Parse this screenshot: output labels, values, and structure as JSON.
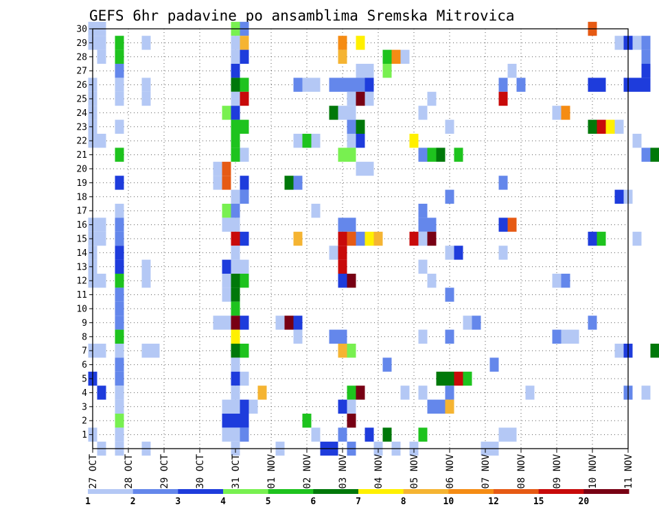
{
  "chart_data": {
    "type": "heatmap",
    "title": "GEFS 6hr padavine po ansamblima Sremska Mitrovica",
    "x_tick_labels": [
      "27 OCT",
      "28 OCT",
      "29 OCT",
      "30 OCT",
      "31 OCT",
      "01 NOV",
      "02 NOV",
      "03 NOV",
      "04 NOV",
      "05 NOV",
      "06 NOV",
      "07 NOV",
      "08 NOV",
      "09 NOV",
      "10 NOV",
      "11 NOV"
    ],
    "y_tick_labels": [
      "1",
      "2",
      "3",
      "4",
      "5",
      "6",
      "7",
      "8",
      "9",
      "10",
      "11",
      "12",
      "13",
      "14",
      "15",
      "16",
      "17",
      "18",
      "19",
      "20",
      "21",
      "22",
      "23",
      "24",
      "25",
      "26",
      "27",
      "28",
      "29",
      "30"
    ],
    "x_range": [
      0,
      60
    ],
    "y_range": [
      0,
      30
    ],
    "step_hours": 6,
    "grid": true,
    "colorbar": {
      "labels": [
        "1",
        "2",
        "3",
        "4",
        "5",
        "6",
        "7",
        "8",
        "10",
        "12",
        "15",
        "20"
      ],
      "colors": [
        "#b4c8f5",
        "#6487eb",
        "#1e3cdc",
        "#78f050",
        "#1ec31e",
        "#00780a",
        "#fff000",
        "#f5b432",
        "#f58c14",
        "#e65a14",
        "#c80a0a",
        "#780014"
      ]
    },
    "cells": [
      [
        0,
        30,
        0
      ],
      [
        0,
        29,
        0
      ],
      [
        0,
        26,
        0
      ],
      [
        0,
        25,
        0
      ],
      [
        0,
        24,
        0
      ],
      [
        0,
        23,
        0
      ],
      [
        0,
        22,
        0
      ],
      [
        0,
        16,
        0
      ],
      [
        0,
        15,
        0
      ],
      [
        0,
        14,
        0
      ],
      [
        0,
        13,
        0
      ],
      [
        0,
        12,
        0
      ],
      [
        0,
        7,
        0
      ],
      [
        0,
        5,
        2
      ],
      [
        0,
        1,
        0
      ],
      [
        1,
        30,
        0
      ],
      [
        1,
        29,
        0
      ],
      [
        1,
        28,
        0
      ],
      [
        1,
        22,
        0
      ],
      [
        1,
        16,
        0
      ],
      [
        1,
        15,
        0
      ],
      [
        1,
        12,
        0
      ],
      [
        1,
        7,
        0
      ],
      [
        1,
        4,
        2
      ],
      [
        1,
        0,
        0
      ],
      [
        3,
        29,
        4
      ],
      [
        3,
        28,
        4
      ],
      [
        3,
        27,
        1
      ],
      [
        3,
        26,
        0
      ],
      [
        3,
        25,
        0
      ],
      [
        3,
        23,
        0
      ],
      [
        3,
        21,
        4
      ],
      [
        3,
        19,
        2
      ],
      [
        3,
        17,
        0
      ],
      [
        3,
        16,
        1
      ],
      [
        3,
        15,
        1
      ],
      [
        3,
        14,
        2
      ],
      [
        3,
        13,
        2
      ],
      [
        3,
        12,
        4
      ],
      [
        3,
        11,
        1
      ],
      [
        3,
        10,
        1
      ],
      [
        3,
        9,
        1
      ],
      [
        3,
        8,
        4
      ],
      [
        3,
        7,
        0
      ],
      [
        3,
        6,
        1
      ],
      [
        3,
        5,
        1
      ],
      [
        3,
        4,
        0
      ],
      [
        3,
        3,
        0
      ],
      [
        3,
        2,
        3
      ],
      [
        3,
        1,
        0
      ],
      [
        3,
        0,
        0
      ],
      [
        6,
        29,
        0
      ],
      [
        6,
        26,
        0
      ],
      [
        6,
        25,
        0
      ],
      [
        6,
        13,
        0
      ],
      [
        6,
        12,
        0
      ],
      [
        6,
        7,
        0
      ],
      [
        6,
        0,
        0
      ],
      [
        7,
        7,
        0
      ],
      [
        14,
        20,
        0
      ],
      [
        14,
        19,
        0
      ],
      [
        14,
        9,
        0
      ],
      [
        15,
        24,
        3
      ],
      [
        15,
        20,
        9
      ],
      [
        15,
        19,
        9
      ],
      [
        15,
        17,
        3
      ],
      [
        15,
        16,
        0
      ],
      [
        15,
        13,
        2
      ],
      [
        15,
        12,
        0
      ],
      [
        15,
        11,
        0
      ],
      [
        15,
        9,
        0
      ],
      [
        15,
        3,
        0
      ],
      [
        15,
        2,
        2
      ],
      [
        15,
        1,
        0
      ],
      [
        16,
        30,
        3
      ],
      [
        16,
        29,
        0
      ],
      [
        16,
        28,
        0
      ],
      [
        16,
        27,
        2
      ],
      [
        16,
        26,
        5
      ],
      [
        16,
        25,
        0
      ],
      [
        16,
        24,
        2
      ],
      [
        16,
        23,
        4
      ],
      [
        16,
        22,
        4
      ],
      [
        16,
        21,
        4
      ],
      [
        16,
        18,
        0
      ],
      [
        16,
        17,
        1
      ],
      [
        16,
        16,
        0
      ],
      [
        16,
        15,
        10
      ],
      [
        16,
        14,
        0
      ],
      [
        16,
        13,
        0
      ],
      [
        16,
        12,
        5
      ],
      [
        16,
        11,
        5
      ],
      [
        16,
        10,
        4
      ],
      [
        16,
        9,
        11
      ],
      [
        16,
        8,
        6
      ],
      [
        16,
        7,
        5
      ],
      [
        16,
        6,
        0
      ],
      [
        16,
        5,
        2
      ],
      [
        16,
        4,
        0
      ],
      [
        16,
        3,
        0
      ],
      [
        16,
        2,
        2
      ],
      [
        16,
        1,
        0
      ],
      [
        16,
        0,
        0
      ],
      [
        17,
        30,
        1
      ],
      [
        17,
        29,
        7
      ],
      [
        17,
        28,
        2
      ],
      [
        17,
        26,
        4
      ],
      [
        17,
        25,
        10
      ],
      [
        17,
        23,
        4
      ],
      [
        17,
        21,
        0
      ],
      [
        17,
        19,
        2
      ],
      [
        17,
        18,
        1
      ],
      [
        17,
        15,
        2
      ],
      [
        17,
        13,
        0
      ],
      [
        17,
        12,
        4
      ],
      [
        17,
        9,
        2
      ],
      [
        17,
        7,
        4
      ],
      [
        17,
        5,
        0
      ],
      [
        17,
        3,
        2
      ],
      [
        17,
        2,
        2
      ],
      [
        17,
        1,
        1
      ],
      [
        18,
        3,
        0
      ],
      [
        19,
        4,
        7
      ],
      [
        21,
        9,
        0
      ],
      [
        21,
        0,
        0
      ],
      [
        22,
        19,
        5
      ],
      [
        22,
        9,
        11
      ],
      [
        23,
        26,
        1
      ],
      [
        23,
        22,
        0
      ],
      [
        23,
        19,
        1
      ],
      [
        23,
        15,
        7
      ],
      [
        23,
        9,
        2
      ],
      [
        23,
        8,
        0
      ],
      [
        24,
        26,
        0
      ],
      [
        24,
        22,
        4
      ],
      [
        24,
        2,
        4
      ],
      [
        25,
        26,
        0
      ],
      [
        25,
        22,
        0
      ],
      [
        25,
        17,
        0
      ],
      [
        25,
        1,
        0
      ],
      [
        26,
        0,
        2
      ],
      [
        27,
        26,
        1
      ],
      [
        27,
        24,
        5
      ],
      [
        27,
        14,
        0
      ],
      [
        27,
        8,
        1
      ],
      [
        27,
        0,
        2
      ],
      [
        28,
        29,
        8
      ],
      [
        28,
        28,
        7
      ],
      [
        28,
        26,
        1
      ],
      [
        28,
        24,
        0
      ],
      [
        28,
        21,
        3
      ],
      [
        28,
        16,
        1
      ],
      [
        28,
        15,
        10
      ],
      [
        28,
        14,
        10
      ],
      [
        28,
        13,
        10
      ],
      [
        28,
        12,
        2
      ],
      [
        28,
        8,
        1
      ],
      [
        28,
        7,
        7
      ],
      [
        28,
        3,
        2
      ],
      [
        28,
        1,
        1
      ],
      [
        29,
        26,
        1
      ],
      [
        29,
        25,
        0
      ],
      [
        29,
        24,
        0
      ],
      [
        29,
        23,
        1
      ],
      [
        29,
        22,
        0
      ],
      [
        29,
        21,
        3
      ],
      [
        29,
        16,
        1
      ],
      [
        29,
        15,
        9
      ],
      [
        29,
        12,
        11
      ],
      [
        29,
        7,
        3
      ],
      [
        29,
        4,
        4
      ],
      [
        29,
        3,
        0
      ],
      [
        29,
        2,
        11
      ],
      [
        29,
        0,
        1
      ],
      [
        30,
        29,
        6
      ],
      [
        30,
        27,
        0
      ],
      [
        30,
        26,
        1
      ],
      [
        30,
        25,
        11
      ],
      [
        30,
        23,
        5
      ],
      [
        30,
        22,
        2
      ],
      [
        30,
        20,
        0
      ],
      [
        30,
        15,
        1
      ],
      [
        30,
        4,
        11
      ],
      [
        31,
        27,
        0
      ],
      [
        31,
        26,
        2
      ],
      [
        31,
        25,
        0
      ],
      [
        31,
        20,
        0
      ],
      [
        31,
        15,
        6
      ],
      [
        31,
        1,
        2
      ],
      [
        32,
        15,
        7
      ],
      [
        32,
        0,
        0
      ],
      [
        33,
        28,
        4
      ],
      [
        33,
        27,
        3
      ],
      [
        33,
        6,
        1
      ],
      [
        33,
        1,
        5
      ],
      [
        34,
        28,
        8
      ],
      [
        34,
        0,
        0
      ],
      [
        35,
        28,
        0
      ],
      [
        35,
        4,
        0
      ],
      [
        36,
        22,
        6
      ],
      [
        36,
        15,
        10
      ],
      [
        36,
        0,
        0
      ],
      [
        37,
        24,
        0
      ],
      [
        37,
        21,
        1
      ],
      [
        37,
        17,
        1
      ],
      [
        37,
        16,
        1
      ],
      [
        37,
        15,
        0
      ],
      [
        37,
        13,
        0
      ],
      [
        37,
        8,
        0
      ],
      [
        37,
        4,
        0
      ],
      [
        37,
        1,
        4
      ],
      [
        38,
        25,
        0
      ],
      [
        38,
        21,
        4
      ],
      [
        38,
        16,
        1
      ],
      [
        38,
        15,
        11
      ],
      [
        38,
        12,
        0
      ],
      [
        38,
        3,
        1
      ],
      [
        39,
        21,
        5
      ],
      [
        39,
        5,
        5
      ],
      [
        39,
        3,
        1
      ],
      [
        40,
        23,
        0
      ],
      [
        40,
        18,
        1
      ],
      [
        40,
        14,
        0
      ],
      [
        40,
        11,
        1
      ],
      [
        40,
        8,
        1
      ],
      [
        40,
        5,
        5
      ],
      [
        40,
        4,
        1
      ],
      [
        40,
        3,
        7
      ],
      [
        41,
        21,
        4
      ],
      [
        41,
        14,
        2
      ],
      [
        41,
        5,
        10
      ],
      [
        42,
        9,
        0
      ],
      [
        42,
        5,
        4
      ],
      [
        43,
        9,
        1
      ],
      [
        44,
        0,
        0
      ],
      [
        45,
        6,
        1
      ],
      [
        45,
        0,
        0
      ],
      [
        46,
        26,
        1
      ],
      [
        46,
        25,
        10
      ],
      [
        46,
        19,
        1
      ],
      [
        46,
        16,
        2
      ],
      [
        46,
        14,
        0
      ],
      [
        46,
        1,
        0
      ],
      [
        47,
        27,
        0
      ],
      [
        47,
        16,
        9
      ],
      [
        47,
        1,
        0
      ],
      [
        48,
        26,
        1
      ],
      [
        49,
        4,
        0
      ],
      [
        52,
        24,
        0
      ],
      [
        52,
        12,
        0
      ],
      [
        52,
        8,
        1
      ],
      [
        53,
        24,
        8
      ],
      [
        53,
        12,
        1
      ],
      [
        53,
        8,
        0
      ],
      [
        54,
        8,
        0
      ],
      [
        56,
        30,
        9
      ],
      [
        56,
        26,
        2
      ],
      [
        56,
        23,
        5
      ],
      [
        56,
        15,
        2
      ],
      [
        56,
        9,
        1
      ],
      [
        57,
        26,
        2
      ],
      [
        57,
        23,
        10
      ],
      [
        57,
        15,
        4
      ],
      [
        58,
        23,
        6
      ],
      [
        59,
        29,
        0
      ],
      [
        59,
        23,
        0
      ],
      [
        59,
        18,
        2
      ],
      [
        59,
        7,
        0
      ],
      [
        60,
        29,
        2
      ],
      [
        60,
        26,
        2
      ],
      [
        60,
        18,
        0
      ],
      [
        60,
        7,
        2
      ],
      [
        60,
        4,
        1
      ],
      [
        61,
        29,
        0
      ],
      [
        61,
        26,
        2
      ],
      [
        61,
        22,
        0
      ],
      [
        61,
        15,
        0
      ],
      [
        62,
        29,
        1
      ],
      [
        62,
        28,
        1
      ],
      [
        62,
        27,
        2
      ],
      [
        62,
        26,
        2
      ],
      [
        62,
        21,
        1
      ],
      [
        62,
        4,
        0
      ],
      [
        63,
        21,
        5
      ],
      [
        63,
        7,
        5
      ],
      [
        64,
        30,
        0
      ],
      [
        64,
        29,
        8
      ],
      [
        64,
        21,
        4
      ],
      [
        64,
        18,
        1
      ],
      [
        64,
        15,
        7
      ],
      [
        64,
        4,
        0
      ],
      [
        65,
        29,
        1
      ],
      [
        65,
        28,
        1
      ],
      [
        65,
        18,
        4
      ],
      [
        65,
        16,
        4
      ],
      [
        65,
        15,
        1
      ],
      [
        65,
        12,
        2
      ],
      [
        65,
        8,
        0
      ],
      [
        65,
        7,
        2
      ],
      [
        65,
        4,
        1
      ],
      [
        66,
        29,
        0
      ],
      [
        66,
        18,
        0
      ],
      [
        66,
        7,
        0
      ],
      [
        67,
        7,
        0
      ],
      [
        68,
        7,
        1
      ],
      [
        69,
        17,
        0
      ],
      [
        69,
        3,
        0
      ]
    ]
  }
}
